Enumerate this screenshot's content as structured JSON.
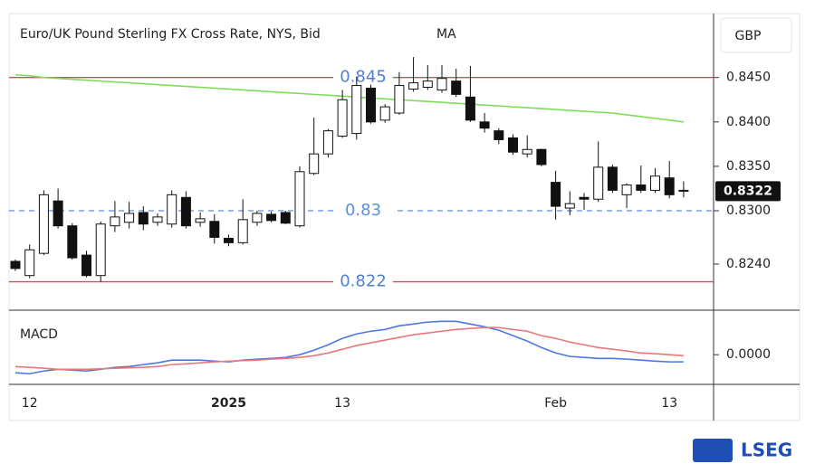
{
  "chart_data": [
    {
      "type": "candlestick",
      "title": "Euro/UK Pound Sterling FX Cross Rate, NYS, Bid",
      "unit": "GBP",
      "source": "LSEG",
      "categories": [
        null,
        "12",
        null,
        null,
        null,
        null,
        null,
        null,
        null,
        null,
        null,
        null,
        null,
        null,
        null,
        "2025",
        null,
        null,
        null,
        null,
        null,
        null,
        null,
        "13",
        null,
        null,
        null,
        null,
        null,
        null,
        null,
        null,
        null,
        null,
        null,
        null,
        null,
        null,
        "Feb",
        null,
        null,
        null,
        null,
        null,
        null,
        null,
        "13",
        null
      ],
      "open": [
        0.8243,
        0.8227,
        0.8252,
        0.8311,
        0.8283,
        0.825,
        0.8227,
        0.8283,
        0.8287,
        0.8298,
        0.8287,
        0.8285,
        0.8315,
        0.8287,
        0.8288,
        0.8269,
        0.8264,
        0.8287,
        0.8296,
        0.8298,
        0.8283,
        0.8342,
        0.8364,
        0.8384,
        0.8387,
        0.8438,
        0.8402,
        0.841,
        0.8437,
        0.8439,
        0.8436,
        0.8446,
        0.8428,
        0.84,
        0.839,
        0.8382,
        0.8364,
        0.8369,
        0.8332,
        0.8303,
        0.8315,
        0.8313,
        0.8349,
        0.8318,
        0.8329,
        0.8323,
        0.8337,
        0.8323
      ],
      "high": [
        0.8245,
        0.8262,
        0.8323,
        0.8325,
        0.8286,
        0.8255,
        0.8288,
        0.8311,
        0.831,
        0.8305,
        0.8297,
        0.8323,
        0.8322,
        0.8298,
        0.8296,
        0.8273,
        0.8313,
        0.83,
        0.8299,
        0.83,
        0.835,
        0.8405,
        0.8392,
        0.8436,
        0.8451,
        0.8442,
        0.842,
        0.8456,
        0.8473,
        0.8464,
        0.8464,
        0.846,
        0.8463,
        0.841,
        0.8393,
        0.8386,
        0.8385,
        0.837,
        0.8345,
        0.8322,
        0.832,
        0.8378,
        0.8352,
        0.8331,
        0.8351,
        0.8348,
        0.8356,
        0.8333
      ],
      "low": [
        0.8232,
        0.8224,
        0.825,
        0.828,
        0.8245,
        0.8225,
        0.822,
        0.8276,
        0.828,
        0.8278,
        0.8283,
        0.8281,
        0.828,
        0.8282,
        0.8263,
        0.826,
        0.8262,
        0.8283,
        0.8287,
        0.8285,
        0.8281,
        0.834,
        0.836,
        0.8382,
        0.838,
        0.8398,
        0.8399,
        0.8408,
        0.8434,
        0.8436,
        0.8433,
        0.8428,
        0.84,
        0.8388,
        0.8375,
        0.8363,
        0.836,
        0.835,
        0.829,
        0.8295,
        0.8301,
        0.831,
        0.832,
        0.8303,
        0.832,
        0.832,
        0.8314,
        0.8315
      ],
      "close": [
        0.8235,
        0.8256,
        0.8318,
        0.8283,
        0.8247,
        0.8227,
        0.8285,
        0.8293,
        0.8297,
        0.8285,
        0.8293,
        0.8318,
        0.8283,
        0.8291,
        0.827,
        0.8264,
        0.829,
        0.8297,
        0.8289,
        0.8286,
        0.8344,
        0.8364,
        0.839,
        0.8425,
        0.8441,
        0.84,
        0.8417,
        0.8441,
        0.8444,
        0.8446,
        0.8449,
        0.8431,
        0.8402,
        0.8393,
        0.838,
        0.8366,
        0.8369,
        0.8352,
        0.8305,
        0.8308,
        0.8313,
        0.8349,
        0.8323,
        0.8329,
        0.8323,
        0.8339,
        0.8318,
        0.8322
      ],
      "up_color": "#ffffff",
      "down_color": "#111111",
      "series": [
        {
          "name": "MA",
          "color": "#7ddc5a",
          "values": [
            0.8453,
            0.8452,
            0.845,
            0.8449,
            0.8448,
            0.8447,
            0.8446,
            0.8445,
            0.8444,
            0.8443,
            0.8442,
            0.8441,
            0.844,
            0.8439,
            0.8438,
            0.8437,
            0.8436,
            0.8435,
            0.8434,
            0.8433,
            0.8432,
            0.8431,
            0.843,
            0.8429,
            0.8428,
            0.8427,
            0.8426,
            0.8425,
            0.8424,
            0.8423,
            0.8422,
            0.8421,
            0.842,
            0.8419,
            0.8418,
            0.8417,
            0.8416,
            0.8415,
            0.8414,
            0.8413,
            0.8412,
            0.8411,
            0.841,
            0.8408,
            0.8406,
            0.8404,
            0.8402,
            0.84
          ]
        }
      ],
      "levels": [
        {
          "value": 0.845,
          "color": "#d9485a",
          "dashed": false
        },
        {
          "value": 0.83,
          "color": "#5b8fe0",
          "dashed": true
        },
        {
          "value": 0.822,
          "color": "#d9485a",
          "dashed": false
        }
      ],
      "last": 0.8322,
      "ylim": [
        0.8188,
        0.8522
      ],
      "yticks": [
        {
          "value": 0.824,
          "label": "0.8240"
        },
        {
          "value": 0.83,
          "label": "0.8300"
        },
        {
          "value": 0.835,
          "label": "0.8350"
        },
        {
          "value": 0.84,
          "label": "0.8400"
        },
        {
          "value": 0.845,
          "label": "0.8450"
        }
      ]
    },
    {
      "type": "line",
      "title": "MACD",
      "series": [
        {
          "color": "#4a78e0",
          "values": [
            -0.00073,
            -0.00077,
            -0.00066,
            -0.00059,
            -0.00062,
            -0.00066,
            -0.00059,
            -0.00051,
            -0.00048,
            -0.0004,
            -0.00033,
            -0.00022,
            -0.00022,
            -0.00022,
            -0.00026,
            -0.00029,
            -0.00022,
            -0.00018,
            -0.00015,
            -0.00011,
            0,
            0.00018,
            0.0004,
            0.00066,
            0.00084,
            0.00095,
            0.00102,
            0.00117,
            0.00124,
            0.00132,
            0.00135,
            0.00135,
            0.00124,
            0.00113,
            0.00099,
            0.00077,
            0.00055,
            0.00029,
            7e-05,
            -7e-05,
            -0.00011,
            -0.00015,
            -0.00015,
            -0.00018,
            -0.00022,
            -0.00026,
            -0.00029,
            -0.00029
          ]
        },
        {
          "color": "#e8787c",
          "values": [
            -0.00048,
            -0.00051,
            -0.00055,
            -0.00059,
            -0.00059,
            -0.00059,
            -0.00057,
            -0.00055,
            -0.00053,
            -0.00051,
            -0.00048,
            -0.0004,
            -0.00037,
            -0.00033,
            -0.00029,
            -0.00026,
            -0.00024,
            -0.00022,
            -0.00018,
            -0.00015,
            -0.00011,
            -4e-05,
            7e-05,
            0.00022,
            0.00037,
            0.00048,
            0.00059,
            0.0007,
            0.00081,
            0.00088,
            0.00095,
            0.00102,
            0.00106,
            0.0011,
            0.0011,
            0.00102,
            0.00095,
            0.00077,
            0.00066,
            0.00051,
            0.0004,
            0.00029,
            0.00022,
            0.00015,
            7e-05,
            4e-05,
            0,
            -4e-05
          ]
        }
      ],
      "ylim": [
        -0.0012,
        0.0018
      ],
      "yticks": [
        {
          "value": 0,
          "label": "0.0000"
        }
      ]
    }
  ]
}
